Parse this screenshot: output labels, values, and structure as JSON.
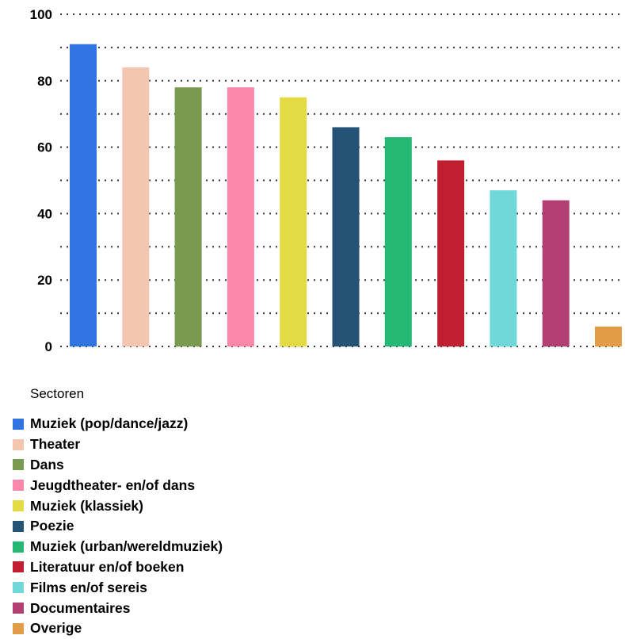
{
  "chart_data": {
    "type": "bar",
    "title": "",
    "xlabel": "",
    "ylabel": "",
    "ylim": [
      0,
      100
    ],
    "yticks": [
      0,
      20,
      40,
      60,
      80,
      100
    ],
    "grid": true,
    "legend_position": "bottom-left",
    "legend_title": "Sectoren",
    "categories": [
      "Muziek (pop/dance/jazz)",
      "Theater",
      "Dans",
      "Jeugdtheater- en/of dans",
      "Muziek (klassiek)",
      "Poezie",
      "Muziek (urban/wereldmuziek)",
      "Literatuur en/of boeken",
      "Films en/of sereis",
      "Documentaires",
      "Overige"
    ],
    "values": [
      91,
      84,
      78,
      78,
      75,
      66,
      63,
      56,
      47,
      44,
      6
    ],
    "colors": [
      "#3074e2",
      "#f4c6b0",
      "#799a4f",
      "#fd87ab",
      "#e4da43",
      "#245376",
      "#24b874",
      "#bf1f30",
      "#71d8d9",
      "#b34073",
      "#e29c45"
    ]
  }
}
